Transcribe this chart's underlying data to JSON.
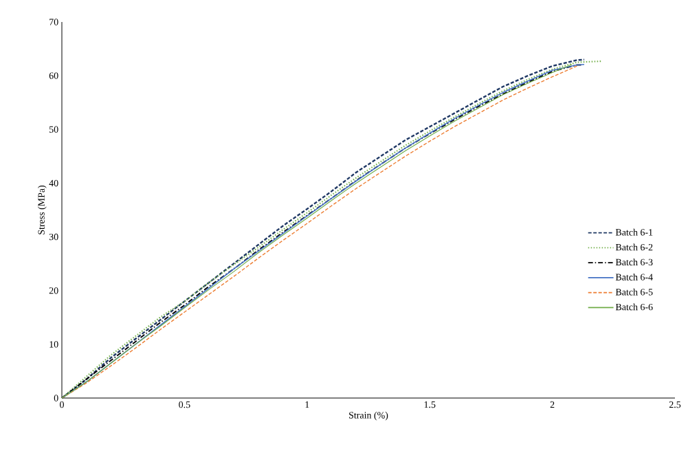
{
  "chart_data": {
    "type": "line",
    "xlabel": "Strain (%)",
    "ylabel": "Stress (MPa)",
    "xlim": [
      0,
      2.5
    ],
    "ylim": [
      0,
      70
    ],
    "xticks": [
      0,
      0.5,
      1,
      1.5,
      2,
      2.5
    ],
    "yticks": [
      0,
      10,
      20,
      30,
      40,
      50,
      60,
      70
    ],
    "grid": false,
    "legend": "right",
    "marker": "none",
    "series": [
      {
        "name": "Batch 6-1",
        "color": "#1f3864",
        "line_style": "dashed",
        "x": [
          0,
          0.1,
          0.2,
          0.3,
          0.4,
          0.5,
          0.6,
          0.7,
          0.8,
          0.9,
          1.0,
          1.1,
          1.2,
          1.3,
          1.4,
          1.5,
          1.6,
          1.7,
          1.8,
          1.9,
          2.0,
          2.1,
          2.13
        ],
        "values": [
          0,
          3.5,
          7.5,
          11,
          14.5,
          18,
          21.5,
          25,
          28.5,
          32,
          35.2,
          38.5,
          42,
          45,
          48,
          50.5,
          53,
          55.5,
          58,
          60,
          61.8,
          62.9,
          63
        ]
      },
      {
        "name": "Batch 6-2",
        "color": "#70ad47",
        "line_style": "dotted",
        "x": [
          0,
          0.1,
          0.2,
          0.3,
          0.4,
          0.5,
          0.6,
          0.7,
          0.8,
          0.9,
          1.0,
          1.1,
          1.2,
          1.3,
          1.4,
          1.5,
          1.6,
          1.7,
          1.8,
          1.9,
          2.0,
          2.1,
          2.2
        ],
        "values": [
          0,
          4,
          8,
          11.5,
          15,
          18,
          21.5,
          24.8,
          28,
          31.3,
          34.5,
          37.8,
          41,
          44,
          47,
          49.7,
          52.3,
          54.8,
          57.2,
          59.3,
          61.2,
          62.5,
          62.7
        ]
      },
      {
        "name": "Batch 6-3",
        "color": "#000000",
        "line_style": "dashdot",
        "x": [
          0,
          0.1,
          0.2,
          0.3,
          0.4,
          0.5,
          0.6,
          0.7,
          0.8,
          0.9,
          1.0,
          1.1,
          1.2,
          1.3,
          1.4,
          1.5,
          1.6,
          1.7,
          1.8,
          1.9,
          2.0,
          2.1,
          2.12
        ],
        "values": [
          0,
          3.5,
          7,
          10.5,
          14,
          17.3,
          20.8,
          24,
          27.5,
          30.8,
          34,
          37.2,
          40.5,
          43.5,
          46.5,
          49.2,
          51.8,
          54.3,
          56.6,
          58.8,
          60.8,
          62,
          62
        ]
      },
      {
        "name": "Batch 6-4",
        "color": "#4472c4",
        "line_style": "solid",
        "x": [
          0,
          0.1,
          0.2,
          0.3,
          0.4,
          0.5,
          0.6,
          0.7,
          0.8,
          0.9,
          1.0,
          1.1,
          1.2,
          1.3,
          1.4,
          1.5,
          1.6,
          1.7,
          1.8,
          1.9,
          2.0,
          2.1,
          2.13
        ],
        "values": [
          0,
          3,
          6.5,
          10,
          13.5,
          17,
          20.5,
          24,
          27.3,
          30.6,
          33.9,
          37.2,
          40.4,
          43.5,
          46.5,
          49.3,
          52,
          54.5,
          56.9,
          59,
          61,
          62,
          62.1
        ]
      },
      {
        "name": "Batch 6-5",
        "color": "#ed7d31",
        "line_style": "dashed",
        "x": [
          0,
          0.1,
          0.2,
          0.3,
          0.4,
          0.5,
          0.6,
          0.7,
          0.8,
          0.9,
          1.0,
          1.1,
          1.2,
          1.3,
          1.4,
          1.5,
          1.6,
          1.7,
          1.8,
          1.9,
          2.0,
          2.1
        ],
        "values": [
          0,
          2.8,
          6,
          9.3,
          12.7,
          16,
          19.3,
          22.6,
          26,
          29.3,
          32.5,
          35.8,
          39,
          42,
          45,
          47.8,
          50.5,
          53,
          55.5,
          57.7,
          59.8,
          61.8
        ]
      },
      {
        "name": "Batch 6-6",
        "color": "#70ad47",
        "line_style": "solid",
        "x": [
          0,
          0.1,
          0.2,
          0.3,
          0.4,
          0.5,
          0.6,
          0.7,
          0.8,
          0.9,
          1.0,
          1.1,
          1.2,
          1.3,
          1.4,
          1.5,
          1.6,
          1.7,
          1.8,
          1.9,
          2.0,
          2.08
        ],
        "values": [
          0,
          3,
          6.5,
          10,
          13.3,
          16.8,
          20.2,
          23.5,
          27,
          30.3,
          33.5,
          36.8,
          40,
          43,
          46,
          48.8,
          51.5,
          54,
          56.5,
          58.6,
          60.6,
          62.1
        ]
      }
    ]
  }
}
